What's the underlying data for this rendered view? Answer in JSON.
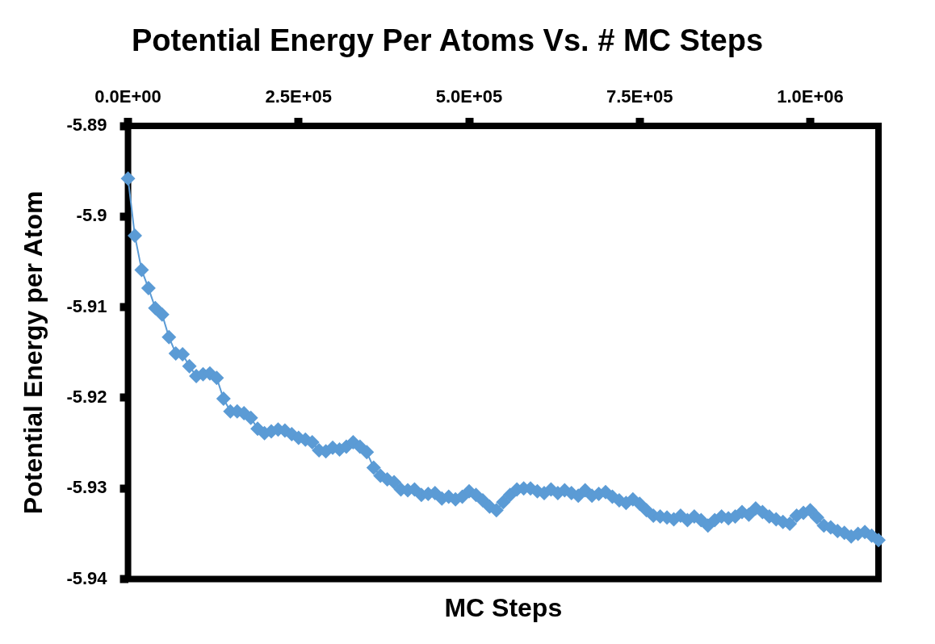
{
  "chart_data": {
    "type": "line",
    "title": "Potential Energy Per Atoms Vs. # MC Steps",
    "xlabel": "MC Steps",
    "ylabel": "Potential Energy per Atom",
    "xlim": [
      0,
      1100000
    ],
    "xticks": [
      {
        "value": 0,
        "label": "0.0E+00"
      },
      {
        "value": 250000,
        "label": "2.5E+05"
      },
      {
        "value": 500000,
        "label": "5.0E+05"
      },
      {
        "value": 750000,
        "label": "7.5E+05"
      },
      {
        "value": 1000000,
        "label": "1.0E+06"
      }
    ],
    "ylim": [
      -5.94,
      -5.89
    ],
    "yticks": [
      -5.94,
      -5.93,
      -5.92,
      -5.91,
      -5.9,
      -5.89
    ],
    "grid": false,
    "legend": false,
    "marker": "diamond",
    "line_style": "solid",
    "x": [
      0,
      10000,
      20000,
      30000,
      40000,
      50000,
      60000,
      70000,
      80000,
      90000,
      100000,
      110000,
      120000,
      130000,
      140000,
      150000,
      160000,
      170000,
      180000,
      190000,
      200000,
      210000,
      220000,
      230000,
      240000,
      250000,
      260000,
      270000,
      280000,
      290000,
      300000,
      310000,
      320000,
      330000,
      340000,
      350000,
      360000,
      370000,
      380000,
      390000,
      400000,
      410000,
      420000,
      430000,
      440000,
      450000,
      460000,
      470000,
      480000,
      490000,
      500000,
      510000,
      520000,
      530000,
      540000,
      550000,
      560000,
      570000,
      580000,
      590000,
      600000,
      610000,
      620000,
      630000,
      640000,
      650000,
      660000,
      670000,
      680000,
      690000,
      700000,
      710000,
      720000,
      730000,
      740000,
      750000,
      760000,
      770000,
      780000,
      790000,
      800000,
      810000,
      820000,
      830000,
      840000,
      850000,
      860000,
      870000,
      880000,
      890000,
      900000,
      910000,
      920000,
      930000,
      940000,
      950000,
      960000,
      970000,
      980000,
      990000,
      1000000,
      1010000,
      1020000,
      1030000,
      1040000,
      1050000,
      1060000,
      1070000,
      1080000,
      1090000,
      1100000
    ],
    "series": [
      {
        "color": "#5b9bd5",
        "values": [
          -5.8958,
          -5.9021,
          -5.9059,
          -5.9079,
          -5.9101,
          -5.9108,
          -5.9133,
          -5.9151,
          -5.9152,
          -5.9165,
          -5.9176,
          -5.9174,
          -5.9173,
          -5.9178,
          -5.9201,
          -5.9215,
          -5.9215,
          -5.9217,
          -5.9222,
          -5.9234,
          -5.9239,
          -5.9237,
          -5.9235,
          -5.9236,
          -5.924,
          -5.9244,
          -5.9246,
          -5.9249,
          -5.9258,
          -5.9259,
          -5.9255,
          -5.9257,
          -5.9254,
          -5.9249,
          -5.9254,
          -5.926,
          -5.9277,
          -5.9286,
          -5.929,
          -5.9293,
          -5.9301,
          -5.9302,
          -5.9301,
          -5.9307,
          -5.9306,
          -5.9305,
          -5.9311,
          -5.9309,
          -5.9312,
          -5.9309,
          -5.9303,
          -5.9307,
          -5.9313,
          -5.932,
          -5.9324,
          -5.9315,
          -5.9307,
          -5.9301,
          -5.93,
          -5.93,
          -5.9303,
          -5.9305,
          -5.9301,
          -5.9305,
          -5.9302,
          -5.9305,
          -5.9308,
          -5.9302,
          -5.9308,
          -5.9306,
          -5.9304,
          -5.9309,
          -5.9313,
          -5.9316,
          -5.9312,
          -5.9317,
          -5.9324,
          -5.933,
          -5.9331,
          -5.9332,
          -5.9334,
          -5.933,
          -5.9335,
          -5.9331,
          -5.9335,
          -5.9341,
          -5.9335,
          -5.9331,
          -5.9333,
          -5.9331,
          -5.9326,
          -5.9329,
          -5.9322,
          -5.9326,
          -5.9331,
          -5.9334,
          -5.9337,
          -5.9339,
          -5.933,
          -5.9327,
          -5.9324,
          -5.9332,
          -5.9341,
          -5.9343,
          -5.9347,
          -5.9349,
          -5.9353,
          -5.935,
          -5.9348,
          -5.9352,
          -5.9357
        ]
      }
    ]
  }
}
